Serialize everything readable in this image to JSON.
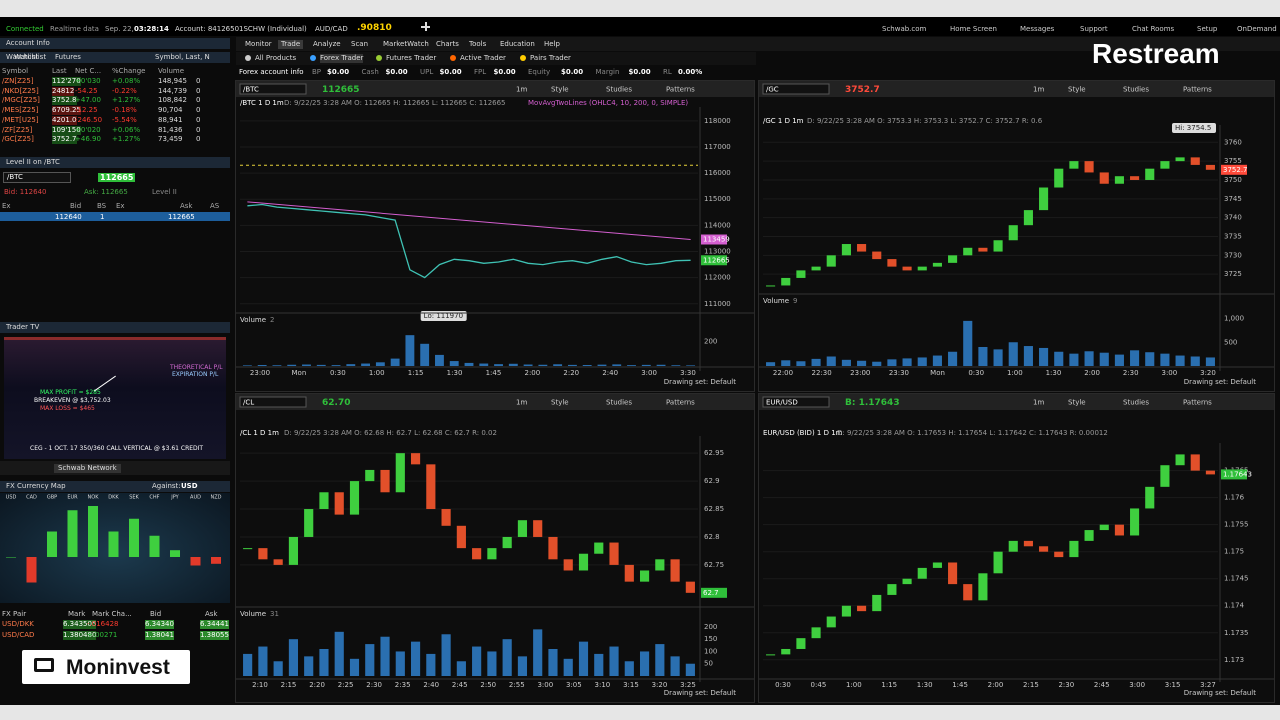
{
  "status_bar": {
    "connected": "Connected",
    "realtime": "Realtime data",
    "date": "Sep. 22,",
    "time": "03:28:14",
    "account": "Account: 84126501SCHW (Individual)",
    "pair": "AUD/CAD",
    "price": ".90810"
  },
  "top_links": [
    "Schwab.com",
    "Home Screen",
    "Messages",
    "Support",
    "Chat Rooms",
    "Setup",
    "OnDemand"
  ],
  "overlays": {
    "restream": "Restream",
    "moninvest": "Moninvest"
  },
  "menu": [
    "Monitor",
    "Trade",
    "Analyze",
    "Scan",
    "MarketWatch",
    "Charts",
    "Tools",
    "Education",
    "Help"
  ],
  "trader_tabs": [
    "All Products",
    "Forex Trader",
    "Futures Trader",
    "Active Trader",
    "Pairs Trader"
  ],
  "account_info": {
    "label": "Forex account info",
    "fields": [
      [
        "BP",
        "$0.00"
      ],
      [
        "Cash",
        "$0.00"
      ],
      [
        "UPL",
        "$0.00"
      ],
      [
        "FPL",
        "$0.00"
      ],
      [
        "Equity",
        "$0.00"
      ],
      [
        "Margin",
        "$0.00"
      ],
      [
        "RL",
        "0.00%"
      ]
    ]
  },
  "sidebar": {
    "account_info": "Account Info",
    "watchlist": {
      "title": "Watchlist",
      "list": "Futures",
      "sort": "Symbol, Last, N",
      "columns": [
        "Symbol",
        "Last",
        "Net C...",
        "%Change",
        "Volume"
      ],
      "rows": [
        [
          "/ZN[Z25]",
          "112'270",
          "+0'030",
          "+0.08%",
          "148,945",
          "0"
        ],
        [
          "/NKD[Z25]",
          "24812",
          "-54.25",
          "-0.22%",
          "144,739",
          "0"
        ],
        [
          "/MGC[Z25]",
          "3752.8",
          "+47.00",
          "+1.27%",
          "108,842",
          "0"
        ],
        [
          "/MES[Z25]",
          "6709.25",
          "-12.25",
          "-0.18%",
          "90,704",
          "0"
        ],
        [
          "/MET[U25]",
          "4201.0",
          "-246.50",
          "-5.54%",
          "88,941",
          "0"
        ],
        [
          "/ZF[Z25]",
          "109'150",
          "+0'020",
          "+0.06%",
          "81,436",
          "0"
        ],
        [
          "/GC[Z25]",
          "3752.7",
          "+46.90",
          "+1.27%",
          "73,459",
          "0"
        ]
      ]
    },
    "level2": {
      "title": "Level II on /BTC",
      "symbol": "/BTC",
      "price": "112665",
      "bid": "Bid: 112640",
      "ask": "Ask: 112665",
      "level": "Level II",
      "columns": [
        "Ex",
        "Bid",
        "BS",
        "Ex",
        "Ask",
        "AS"
      ],
      "row": [
        "112640",
        "1",
        "112665"
      ]
    },
    "trader_tv": {
      "title": "Trader TV",
      "network": "Schwab Network",
      "captions": [
        "THEORETICAL P/L",
        "EXPIRATION P/L",
        "MAX PROFIT = $285",
        "BREAKEVEN @ $3,752.03",
        "MAX LOSS = $465",
        "CEG - 1 OCT. 17 350/360 CALL VERTICAL @ $3.61 CREDIT"
      ]
    },
    "fx_map": {
      "title": "FX Currency Map",
      "against": "Against:",
      "base": "USD",
      "currencies": [
        "USD",
        "CAD",
        "GBP",
        "EUR",
        "NOK",
        "DKK",
        "SEK",
        "CHF",
        "JPY",
        "AUD",
        "NZD"
      ],
      "values": [
        0,
        -0.3,
        0.3,
        0.55,
        0.6,
        0.3,
        0.45,
        0.25,
        0.08,
        -0.1,
        -0.08
      ]
    },
    "fx_table": {
      "columns": [
        "FX Pair",
        "Mark",
        "Mark Cha...",
        "Bid",
        "Ask"
      ],
      "rows": [
        [
          "USD/DKK",
          "6.343505",
          "-.016428",
          "6.34340",
          "6.34441"
        ],
        [
          "USD/CAD",
          "1.380480",
          "+.00271",
          "1.38041",
          "1.38055"
        ]
      ]
    }
  },
  "chart_toolbar": [
    "1m",
    "Style",
    "Studies",
    "Patterns"
  ],
  "drawing_set": "Drawing set: Default",
  "volume_label": "Volume",
  "charts": [
    {
      "type": "line",
      "symbol": "/BTC",
      "price": "112665",
      "price_color": "#2fbf3a",
      "title": "/BTC 1 D 1m",
      "info": "D: 9/22/25 3:28 AM  O: 112665  H: 112665  L: 112665  C: 112665",
      "study": "MovAvgTwoLines (OHLC4, 10, 200, 0, SIMPLE)",
      "color": "#3fc2b4",
      "ma_color": "#d45fd0",
      "ylim": [
        110800,
        118300
      ],
      "yticks": [
        111000,
        112000,
        113000,
        114000,
        115000,
        116000,
        117000,
        118000
      ],
      "x_labels": [
        "23:00",
        "Mon",
        "0:30",
        "1:00",
        "1:15",
        "1:30",
        "1:45",
        "2:00",
        "2:20",
        "2:40",
        "3:00",
        "3:30"
      ],
      "values": [
        114750,
        114800,
        114700,
        114650,
        114600,
        114550,
        114500,
        114450,
        114400,
        114300,
        114200,
        112300,
        112000,
        112500,
        112700,
        112650,
        112550,
        112600,
        112700,
        112550,
        112500,
        112600,
        112650,
        112550,
        112700,
        112800,
        112600,
        112500,
        112550,
        112650,
        112665
      ],
      "ma_values": [
        114900,
        113459
      ],
      "level_line": 116300,
      "low_label": "Lo: 111970",
      "volume": {
        "count": "2",
        "values": [
          5,
          8,
          6,
          10,
          12,
          9,
          7,
          15,
          20,
          30,
          60,
          250,
          180,
          90,
          40,
          25,
          20,
          15,
          18,
          12,
          10,
          14,
          9,
          8,
          11,
          13,
          7,
          9,
          10,
          6,
          5
        ],
        "ylim": [
          0,
          300
        ],
        "yticks": [
          200
        ]
      }
    },
    {
      "type": "candle",
      "symbol": "/GC",
      "price": "3752.7",
      "price_color": "#ff4a3a",
      "title": "/GC 1 D 1m",
      "info": "D: 9/22/25 3:28 AM  O: 3753.3  H: 3753.3  L: 3752.7  C: 3752.7  R: 0.6",
      "ylim": [
        3720,
        3763
      ],
      "yticks": [
        3725,
        3730,
        3735,
        3740,
        3745,
        3750,
        3755,
        3760
      ],
      "x_labels": [
        "22:00",
        "22:30",
        "23:00",
        "23:30",
        "Mon",
        "0:30",
        "1:00",
        "1:30",
        "2:00",
        "2:30",
        "3:00",
        "3:20"
      ],
      "values": [
        3722,
        3724,
        3726,
        3727,
        3730,
        3733,
        3731,
        3729,
        3727,
        3726,
        3727,
        3728,
        3730,
        3732,
        3731,
        3734,
        3738,
        3742,
        3748,
        3753,
        3755,
        3752,
        3749,
        3751,
        3750,
        3753,
        3755,
        3756,
        3754,
        3752.7
      ],
      "high_label": "Hi: 3754.5",
      "volume": {
        "count": "9",
        "values": [
          80,
          120,
          100,
          150,
          200,
          130,
          110,
          90,
          140,
          160,
          180,
          220,
          300,
          950,
          400,
          350,
          500,
          420,
          380,
          300,
          260,
          310,
          280,
          240,
          330,
          290,
          260,
          220,
          200,
          180
        ],
        "ylim": [
          0,
          1200
        ],
        "yticks": [
          {
            "value": 1000,
            "label": "1,000"
          },
          500
        ]
      }
    },
    {
      "type": "candle",
      "symbol": "/CL",
      "price": "62.70",
      "price_color": "#2fbf3a",
      "title": "/CL 1 D 1m",
      "info": "D: 9/22/25 3:28 AM  O: 62.68  H: 62.7  L: 62.68  C: 62.7  R: 0.02",
      "ylim": [
        62.68,
        62.97
      ],
      "yticks": [
        62.75,
        62.8,
        62.85,
        62.9,
        62.95
      ],
      "x_labels": [
        "2:10",
        "2:15",
        "2:20",
        "2:25",
        "2:30",
        "2:35",
        "2:40",
        "2:45",
        "2:50",
        "2:55",
        "3:00",
        "3:05",
        "3:10",
        "3:15",
        "3:20",
        "3:25"
      ],
      "values": [
        62.78,
        62.76,
        62.75,
        62.8,
        62.85,
        62.88,
        62.84,
        62.9,
        62.92,
        62.88,
        62.95,
        62.93,
        62.85,
        62.82,
        62.78,
        62.76,
        62.78,
        62.8,
        62.83,
        62.8,
        62.76,
        62.74,
        62.77,
        62.79,
        62.75,
        62.72,
        62.74,
        62.76,
        62.72,
        62.7
      ],
      "volume": {
        "count": "31",
        "values": [
          90,
          120,
          60,
          150,
          80,
          110,
          180,
          70,
          130,
          160,
          100,
          140,
          90,
          170,
          60,
          120,
          100,
          150,
          80,
          190,
          110,
          70,
          140,
          90,
          120,
          60,
          100,
          130,
          80,
          50
        ],
        "ylim": [
          0,
          220
        ],
        "yticks": [
          50,
          100,
          150,
          200
        ]
      }
    },
    {
      "type": "candle",
      "symbol": "EUR/USD",
      "price": "B: 1.17643",
      "price_color": "#2fbf3a",
      "title": "EUR/USD (BID) 1 D 1m",
      "info": "D: 9/22/25 3:28 AM  O: 1.17653  H: 1.17654  L: 1.17642  C: 1.17643  R: 0.00012",
      "ylim": [
        1.1727,
        1.1769
      ],
      "yticks": [
        1.173,
        1.1735,
        1.174,
        1.1745,
        1.175,
        1.1755,
        1.176,
        1.1765
      ],
      "x_labels": [
        "0:30",
        "0:45",
        "1:00",
        "1:15",
        "1:30",
        "1:45",
        "2:00",
        "2:15",
        "2:30",
        "2:45",
        "3:00",
        "3:15",
        "3:27"
      ],
      "values": [
        1.1731,
        1.1732,
        1.1734,
        1.1736,
        1.1738,
        1.174,
        1.1739,
        1.1742,
        1.1744,
        1.1745,
        1.1747,
        1.1748,
        1.1744,
        1.1741,
        1.1746,
        1.175,
        1.1752,
        1.1751,
        1.175,
        1.1749,
        1.1752,
        1.1754,
        1.1755,
        1.1753,
        1.1758,
        1.1762,
        1.1766,
        1.1768,
        1.1765,
        1.17643
      ]
    }
  ]
}
